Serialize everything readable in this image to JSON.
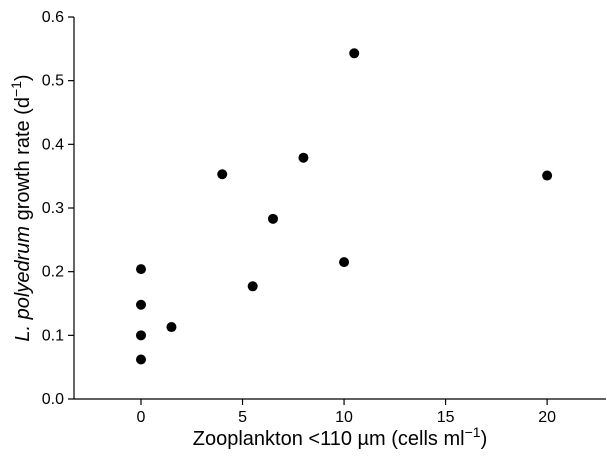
{
  "chart_data": {
    "type": "scatter",
    "title": "",
    "xlabel": {
      "prefix": "Zooplankton <110 µm (cells ml",
      "sup": "−1",
      "suffix": ")"
    },
    "ylabel": {
      "italic": "L. polyedrum",
      "mid": " growth rate (d",
      "sup": "−1",
      "suffix": ")"
    },
    "xlim": [
      -3.3,
      22.9
    ],
    "ylim": [
      0.0,
      0.6
    ],
    "xticks": [
      0,
      5,
      10,
      15,
      20
    ],
    "yticks": [
      0.0,
      0.1,
      0.2,
      0.3,
      0.4,
      0.5,
      0.6
    ],
    "ytick_labels": [
      "0.0",
      "0.1",
      "0.2",
      "0.3",
      "0.4",
      "0.5",
      "0.6"
    ],
    "xtick_labels": [
      "0",
      "5",
      "10",
      "15",
      "20"
    ],
    "grid": false,
    "series": [
      {
        "marker_color": "#000000",
        "points": [
          {
            "x": 0.0,
            "y": 0.062
          },
          {
            "x": 0.0,
            "y": 0.1
          },
          {
            "x": 0.0,
            "y": 0.148
          },
          {
            "x": 0.0,
            "y": 0.204
          },
          {
            "x": 1.5,
            "y": 0.113
          },
          {
            "x": 4.0,
            "y": 0.353
          },
          {
            "x": 5.5,
            "y": 0.177
          },
          {
            "x": 6.5,
            "y": 0.283
          },
          {
            "x": 8.0,
            "y": 0.379
          },
          {
            "x": 10.0,
            "y": 0.215
          },
          {
            "x": 10.5,
            "y": 0.543
          },
          {
            "x": 20.0,
            "y": 0.351
          }
        ]
      }
    ]
  }
}
